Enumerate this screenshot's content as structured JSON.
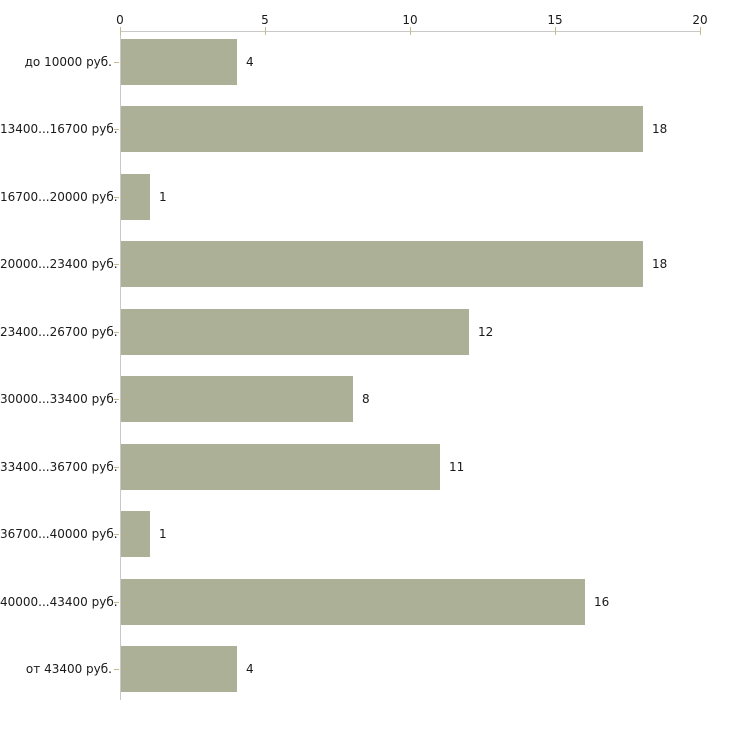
{
  "chart_data": {
    "type": "bar",
    "orientation": "horizontal",
    "title": "",
    "xlabel": "",
    "ylabel": "",
    "categories": [
      "до 10000 руб.",
      "13400...16700 руб.",
      "16700...20000 руб.",
      "20000...23400 руб.",
      "23400...26700 руб.",
      "30000...33400 руб.",
      "33400...36700 руб.",
      "36700...40000 руб.",
      "40000...43400 руб.",
      "от 43400 руб."
    ],
    "values": [
      4,
      18,
      1,
      18,
      12,
      8,
      11,
      1,
      16,
      4
    ],
    "x_ticks": [
      0,
      5,
      10,
      15,
      20
    ],
    "xlim": [
      0,
      20
    ],
    "grid": false,
    "legend": null,
    "colors": {
      "bar": "#abb096",
      "axis": "#c8c8c8",
      "tick": "#c6bc8a",
      "text": "#1a1a1a",
      "background": "#ffffff"
    }
  }
}
